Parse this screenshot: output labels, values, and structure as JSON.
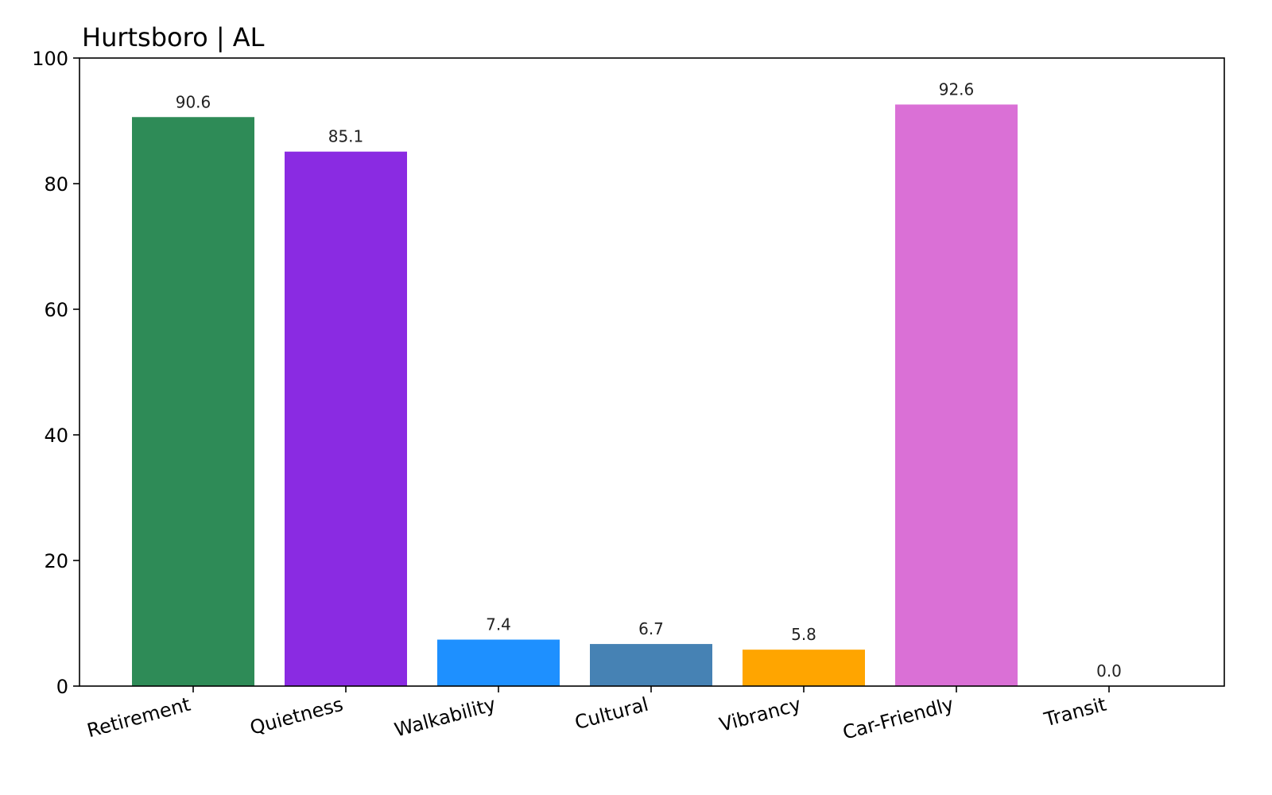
{
  "chart_data": {
    "type": "bar",
    "title": "Hurtsboro | AL",
    "xlabel": "",
    "ylabel": "",
    "categories": [
      "Retirement",
      "Quietness",
      "Walkability",
      "Cultural",
      "Vibrancy",
      "Car-Friendly",
      "Transit"
    ],
    "values": [
      90.6,
      85.1,
      7.4,
      6.7,
      5.8,
      92.6,
      0.0
    ],
    "value_labels": [
      "90.6",
      "85.1",
      "7.4",
      "6.7",
      "5.8",
      "92.6",
      "0.0"
    ],
    "colors": [
      "#2e8b57",
      "#8a2be2",
      "#1e90ff",
      "#4682b4",
      "#ffa500",
      "#da70d6",
      "#808080"
    ],
    "ylim": [
      0,
      100
    ],
    "yticks": [
      0,
      20,
      40,
      60,
      80,
      100
    ],
    "ytick_labels": [
      "0",
      "20",
      "40",
      "60",
      "80",
      "100"
    ],
    "grid": false,
    "legend": "none",
    "xtick_rotation": "slanted"
  }
}
